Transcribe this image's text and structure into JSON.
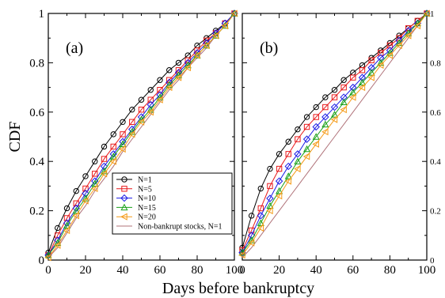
{
  "figure": {
    "ylabel": "CDF",
    "xlabel": "Days before bankruptcy"
  },
  "colors": {
    "N=1": "#000000",
    "N=5": "#e8191b",
    "N=10": "#1a1ae6",
    "N=15": "#18a018",
    "N=20": "#f59a16",
    "Non-bankrupt stocks, N=1": "#b0737a"
  },
  "chart_data": [
    {
      "type": "line",
      "panel_label": "(a)",
      "xlim": [
        0,
        100
      ],
      "ylim": [
        0,
        1
      ],
      "xticks": [
        "0",
        "20",
        "40",
        "60",
        "80",
        "100"
      ],
      "yticks": [
        "0",
        "0.2",
        "0.4",
        "0.6",
        "0.8",
        "1"
      ],
      "x": [
        0,
        5,
        10,
        15,
        20,
        25,
        30,
        35,
        40,
        45,
        50,
        55,
        60,
        65,
        70,
        75,
        80,
        85,
        90,
        95,
        100
      ],
      "series": [
        {
          "name": "N=1",
          "marker": "circle",
          "values": [
            0.03,
            0.13,
            0.21,
            0.28,
            0.34,
            0.4,
            0.46,
            0.51,
            0.56,
            0.61,
            0.65,
            0.69,
            0.73,
            0.77,
            0.8,
            0.83,
            0.87,
            0.9,
            0.93,
            0.96,
            1.0
          ]
        },
        {
          "name": "N=5",
          "marker": "square",
          "values": [
            0.02,
            0.1,
            0.17,
            0.23,
            0.29,
            0.35,
            0.41,
            0.46,
            0.51,
            0.56,
            0.61,
            0.65,
            0.69,
            0.73,
            0.77,
            0.81,
            0.85,
            0.89,
            0.92,
            0.96,
            1.0
          ]
        },
        {
          "name": "N=10",
          "marker": "diamond",
          "values": [
            0.02,
            0.08,
            0.15,
            0.21,
            0.27,
            0.32,
            0.38,
            0.43,
            0.48,
            0.53,
            0.58,
            0.63,
            0.67,
            0.72,
            0.76,
            0.8,
            0.84,
            0.88,
            0.92,
            0.96,
            1.0
          ]
        },
        {
          "name": "N=15",
          "marker": "triangle-up",
          "values": [
            0.02,
            0.07,
            0.14,
            0.2,
            0.25,
            0.31,
            0.36,
            0.42,
            0.47,
            0.52,
            0.57,
            0.61,
            0.66,
            0.71,
            0.75,
            0.79,
            0.83,
            0.87,
            0.91,
            0.95,
            1.0
          ]
        },
        {
          "name": "N=20",
          "marker": "triangle-left",
          "values": [
            0.01,
            0.06,
            0.12,
            0.18,
            0.24,
            0.29,
            0.35,
            0.4,
            0.45,
            0.51,
            0.56,
            0.6,
            0.65,
            0.7,
            0.74,
            0.78,
            0.83,
            0.87,
            0.91,
            0.95,
            1.0
          ]
        },
        {
          "name": "Non-bankrupt stocks, N=1",
          "marker": "none",
          "values": [
            0.01,
            0.05,
            0.11,
            0.17,
            0.22,
            0.28,
            0.33,
            0.38,
            0.44,
            0.49,
            0.54,
            0.59,
            0.64,
            0.69,
            0.73,
            0.78,
            0.82,
            0.86,
            0.91,
            0.95,
            1.0
          ]
        }
      ]
    },
    {
      "type": "line",
      "panel_label": "(b)",
      "xlim": [
        0,
        100
      ],
      "ylim": [
        0,
        1
      ],
      "xticks": [
        "0",
        "20",
        "40",
        "60",
        "80",
        "100"
      ],
      "yticks": [
        "0",
        "0.2",
        "0.4",
        "0.6",
        "0.8",
        "1"
      ],
      "x": [
        0,
        5,
        10,
        15,
        20,
        25,
        30,
        35,
        40,
        45,
        50,
        55,
        60,
        65,
        70,
        75,
        80,
        85,
        90,
        95,
        100
      ],
      "series": [
        {
          "name": "N=1",
          "marker": "circle",
          "values": [
            0.05,
            0.18,
            0.29,
            0.37,
            0.43,
            0.48,
            0.53,
            0.58,
            0.62,
            0.66,
            0.69,
            0.73,
            0.76,
            0.79,
            0.82,
            0.85,
            0.88,
            0.91,
            0.94,
            0.97,
            1.0
          ]
        },
        {
          "name": "N=5",
          "marker": "square",
          "values": [
            0.04,
            0.12,
            0.21,
            0.3,
            0.37,
            0.43,
            0.49,
            0.54,
            0.58,
            0.62,
            0.66,
            0.7,
            0.74,
            0.77,
            0.81,
            0.84,
            0.87,
            0.9,
            0.94,
            0.97,
            1.0
          ]
        },
        {
          "name": "N=10",
          "marker": "diamond",
          "values": [
            0.03,
            0.1,
            0.18,
            0.25,
            0.32,
            0.38,
            0.43,
            0.49,
            0.54,
            0.58,
            0.62,
            0.66,
            0.7,
            0.74,
            0.78,
            0.82,
            0.85,
            0.89,
            0.93,
            0.96,
            1.0
          ]
        },
        {
          "name": "N=15",
          "marker": "triangle-up",
          "values": [
            0.03,
            0.08,
            0.15,
            0.22,
            0.28,
            0.34,
            0.4,
            0.45,
            0.5,
            0.55,
            0.59,
            0.64,
            0.68,
            0.72,
            0.76,
            0.8,
            0.84,
            0.88,
            0.92,
            0.96,
            1.0
          ]
        },
        {
          "name": "N=20",
          "marker": "triangle-left",
          "values": [
            0.02,
            0.07,
            0.13,
            0.2,
            0.26,
            0.32,
            0.37,
            0.42,
            0.47,
            0.52,
            0.57,
            0.61,
            0.66,
            0.7,
            0.74,
            0.79,
            0.83,
            0.87,
            0.91,
            0.95,
            1.0
          ]
        },
        {
          "name": "Non-bankrupt stocks, N=1",
          "marker": "none",
          "values": [
            0.01,
            0.05,
            0.1,
            0.15,
            0.2,
            0.25,
            0.3,
            0.35,
            0.4,
            0.45,
            0.5,
            0.55,
            0.6,
            0.65,
            0.7,
            0.75,
            0.8,
            0.85,
            0.9,
            0.95,
            1.0
          ]
        }
      ]
    }
  ]
}
